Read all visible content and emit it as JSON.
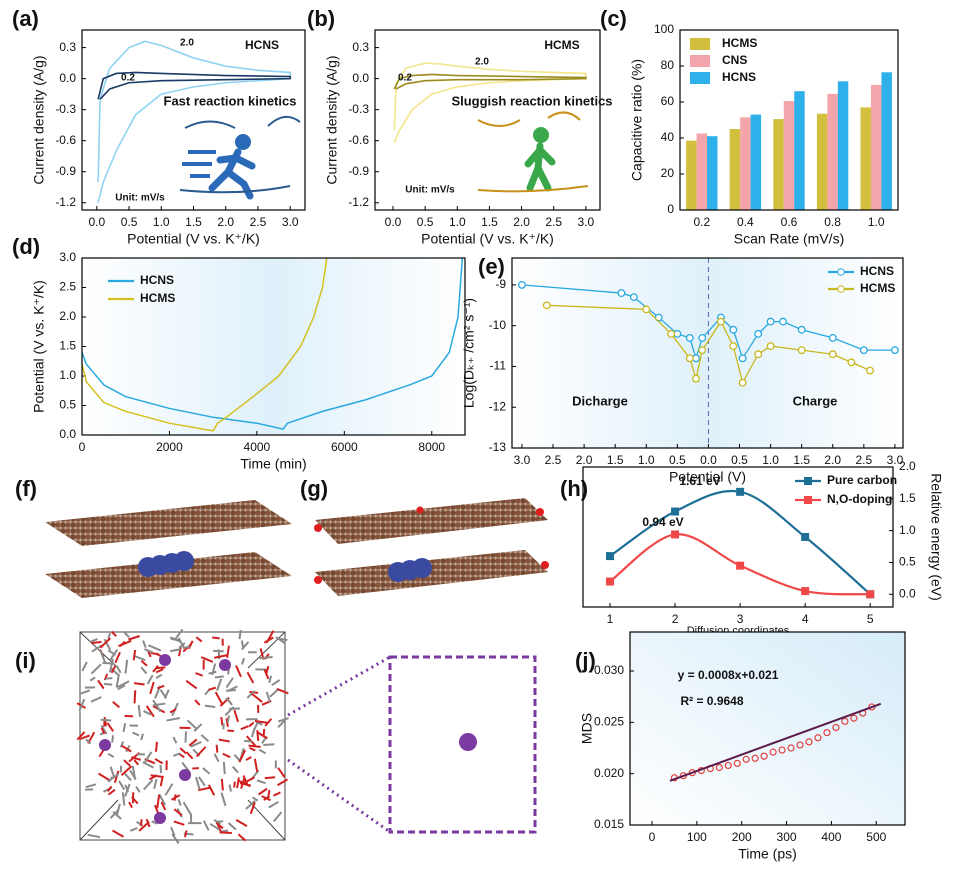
{
  "chart_data": [
    {
      "type": "line",
      "panel_label": "(a)",
      "xlabel": "Potential (V vs. K⁺/K)",
      "ylabel": "Current density (A/g)",
      "xlim": [
        -0.23,
        3.23
      ],
      "ylim": [
        -1.27,
        0.47
      ],
      "xticks": [
        {
          "value": 0,
          "label": "0.0"
        },
        0.5,
        {
          "value": 1,
          "label": "1.0"
        },
        1.5,
        {
          "value": 2,
          "label": "2.0"
        },
        2.5,
        {
          "value": 3,
          "label": "3.0"
        }
      ],
      "yticks": [
        -1.2,
        -0.9,
        -0.6,
        -0.3,
        {
          "value": 0,
          "label": "0.0"
        },
        0.3
      ],
      "annotations": [
        "HCNS",
        "Fast reaction kinetics",
        "Unit: mV/s"
      ],
      "series": [
        {
          "name": "2.0",
          "color": "#8fd3f2",
          "x": [
            0.02,
            0.05,
            0.2,
            0.5,
            0.75,
            1.0,
            1.5,
            2.0,
            2.5,
            3.0,
            3.0,
            2.5,
            2.0,
            1.5,
            1.0,
            0.6,
            0.3,
            0.1,
            0.02
          ],
          "values": [
            -1.0,
            -0.2,
            0.1,
            0.3,
            0.36,
            0.32,
            0.2,
            0.12,
            0.08,
            0.06,
            0.0,
            -0.02,
            -0.04,
            -0.08,
            -0.15,
            -0.35,
            -0.7,
            -1.0,
            -1.2
          ]
        },
        {
          "name": "0.2",
          "color": "#1b3a66",
          "x": [
            0.02,
            0.1,
            0.3,
            0.6,
            1.0,
            2.0,
            3.0,
            3.0,
            2.0,
            1.0,
            0.5,
            0.2,
            0.05
          ],
          "values": [
            -0.2,
            0.0,
            0.05,
            0.06,
            0.05,
            0.03,
            0.02,
            0.0,
            -0.01,
            -0.02,
            -0.04,
            -0.1,
            -0.2
          ]
        }
      ]
    },
    {
      "type": "line",
      "panel_label": "(b)",
      "xlabel": "Potential (V vs. K⁺/K)",
      "ylabel": "Current density (A/g)",
      "xlim": [
        -0.28,
        3.22
      ],
      "ylim": [
        -1.27,
        0.47
      ],
      "xticks": [
        {
          "value": 0,
          "label": "0.0"
        },
        0.5,
        {
          "value": 1,
          "label": "1.0"
        },
        1.5,
        {
          "value": 2,
          "label": "2.0"
        },
        2.5,
        {
          "value": 3,
          "label": "3.0"
        }
      ],
      "yticks": [
        -1.2,
        -0.9,
        -0.6,
        -0.3,
        {
          "value": 0,
          "label": "0.0"
        },
        0.3
      ],
      "annotations": [
        "HCMS",
        "Sluggish reaction kinetics",
        "Unit: mV/s"
      ],
      "series": [
        {
          "name": "2.0",
          "color": "#f2e58a",
          "x": [
            0.02,
            0.05,
            0.2,
            0.5,
            0.75,
            1.0,
            1.5,
            2.0,
            2.5,
            3.0,
            3.0,
            2.5,
            2.0,
            1.5,
            1.0,
            0.6,
            0.3,
            0.1,
            0.02
          ],
          "values": [
            -0.5,
            -0.05,
            0.1,
            0.15,
            0.14,
            0.12,
            0.09,
            0.07,
            0.06,
            0.05,
            0.0,
            -0.01,
            -0.02,
            -0.04,
            -0.08,
            -0.15,
            -0.3,
            -0.5,
            -0.62
          ]
        },
        {
          "name": "0.2",
          "color": "#9a8a20",
          "x": [
            0.02,
            0.1,
            0.3,
            0.6,
            1.0,
            2.0,
            3.0,
            3.0,
            2.0,
            1.0,
            0.5,
            0.2,
            0.05
          ],
          "values": [
            -0.1,
            0.0,
            0.03,
            0.04,
            0.03,
            0.02,
            0.01,
            0.0,
            -0.01,
            -0.01,
            -0.02,
            -0.05,
            -0.1
          ]
        }
      ]
    },
    {
      "type": "bar",
      "panel_label": "(c)",
      "xlabel": "Scan Rate (mV/s)",
      "ylabel": "Capacitive ratio (%)",
      "categories": [
        "0.2",
        "0.4",
        "0.6",
        "0.8",
        "1.0"
      ],
      "ylim": [
        0,
        100
      ],
      "yticks": [
        0,
        20,
        40,
        60,
        80,
        100
      ],
      "legend": "upper left",
      "series": [
        {
          "name": "HCMS",
          "color": "#d2bf3e",
          "values": [
            38.5,
            45,
            50.5,
            53.5,
            57
          ]
        },
        {
          "name": "CNS",
          "color": "#f4a4ab",
          "values": [
            42.5,
            51.5,
            60.5,
            64.5,
            69.5
          ]
        },
        {
          "name": "HCNS",
          "color": "#2eb0ea",
          "values": [
            41,
            53,
            66,
            71.5,
            76.5
          ]
        }
      ]
    },
    {
      "type": "line",
      "panel_label": "(d)",
      "xlabel": "Time (min)",
      "ylabel": "Potential (V vs. K⁺/K)",
      "xlim": [
        0,
        8760
      ],
      "ylim": [
        0,
        3
      ],
      "xticks": [
        0,
        2000,
        4000,
        6000,
        8000
      ],
      "yticks": [
        {
          "value": 0,
          "label": "0.0"
        },
        0.5,
        {
          "value": 1,
          "label": "1.0"
        },
        1.5,
        {
          "value": 2,
          "label": "2.0"
        },
        2.5,
        {
          "value": 3,
          "label": "3.0"
        }
      ],
      "legend": "upper left",
      "series": [
        {
          "name": "HCNS",
          "color": "#2aa8e0",
          "x": [
            0,
            100,
            500,
            1000,
            2000,
            3000,
            4000,
            4600,
            4700,
            5500,
            6500,
            7500,
            8000,
            8400,
            8600,
            8700
          ],
          "values": [
            1.4,
            1.2,
            0.85,
            0.65,
            0.45,
            0.3,
            0.2,
            0.1,
            0.2,
            0.4,
            0.6,
            0.85,
            1.0,
            1.4,
            2.0,
            3.0
          ]
        },
        {
          "name": "HCMS",
          "color": "#d4c020",
          "x": [
            0,
            100,
            500,
            1000,
            2000,
            3000,
            3100,
            3300,
            4000,
            4500,
            5000,
            5300,
            5500,
            5600
          ],
          "values": [
            1.2,
            0.9,
            0.55,
            0.4,
            0.2,
            0.07,
            0.2,
            0.3,
            0.7,
            1.0,
            1.5,
            2.0,
            2.5,
            3.0
          ]
        }
      ]
    },
    {
      "type": "line",
      "panel_label": "(e)",
      "xlabel": "Potential (V)",
      "ylabel": "Log(Dₖ₊ /cm² s⁻¹)",
      "xlim": [
        -3.16,
        3.13
      ],
      "ylim": [
        -13,
        -8.34
      ],
      "xticks": [
        {
          "value": -3,
          "label": "3.0"
        },
        {
          "value": -2.5,
          "label": "2.5"
        },
        {
          "value": -2,
          "label": "2.0"
        },
        {
          "value": -1.5,
          "label": "1.5"
        },
        {
          "value": -1,
          "label": "1.0"
        },
        {
          "value": -0.5,
          "label": "0.5"
        },
        {
          "value": 0,
          "label": "0.0"
        },
        0.5,
        {
          "value": 1,
          "label": "1.0"
        },
        1.5,
        {
          "value": 2,
          "label": "2.0"
        },
        2.5,
        {
          "value": 3,
          "label": "3.0"
        }
      ],
      "yticks": [
        -13,
        -12,
        -11,
        -10,
        -9
      ],
      "legend": "upper right",
      "annotations": [
        "Dicharge",
        "Charge"
      ],
      "series": [
        {
          "name": "HCNS",
          "color": "#2aa8e0",
          "marker": "circle",
          "x": [
            -3,
            -1.4,
            -1.2,
            -0.8,
            -0.5,
            -0.3,
            -0.2,
            -0.1,
            0.2,
            0.4,
            0.55,
            0.8,
            1.0,
            1.2,
            1.5,
            2.0,
            2.5,
            3.0
          ],
          "values": [
            -9.0,
            -9.2,
            -9.3,
            -9.8,
            -10.2,
            -10.3,
            -10.8,
            -10.3,
            -9.8,
            -10.1,
            -10.8,
            -10.2,
            -9.9,
            -9.9,
            -10.1,
            -10.3,
            -10.6,
            -10.6
          ]
        },
        {
          "name": "HCMS",
          "color": "#c8b820",
          "marker": "circle",
          "x": [
            -2.6,
            -1.0,
            -0.6,
            -0.3,
            -0.2,
            -0.1,
            0.2,
            0.4,
            0.55,
            0.8,
            1.0,
            1.5,
            2.0,
            2.3,
            2.6
          ],
          "values": [
            -9.5,
            -9.6,
            -10.2,
            -10.8,
            -11.3,
            -10.6,
            -9.9,
            -10.5,
            -11.4,
            -10.7,
            -10.5,
            -10.6,
            -10.7,
            -10.9,
            -11.1
          ]
        }
      ]
    },
    {
      "type": "image",
      "panel_label": "(f)"
    },
    {
      "type": "image",
      "panel_label": "(g)"
    },
    {
      "type": "line",
      "panel_label": "(h)",
      "xlabel": "Diffusion coordinates",
      "ylabel": "Relative energy (eV)",
      "y_axis_side": "right",
      "smooth": true,
      "xlim": [
        0.585,
        5.35
      ],
      "ylim": [
        -0.2,
        2.0
      ],
      "xticks": [
        1,
        2,
        3,
        4,
        5
      ],
      "yticks": [
        {
          "value": 0,
          "label": "0.0"
        },
        0.5,
        {
          "value": 1,
          "label": "1.0"
        },
        1.5,
        {
          "value": 2,
          "label": "2.0"
        }
      ],
      "legend": "upper right",
      "annotations": [
        "1.61 eV",
        "0.94 eV"
      ],
      "series": [
        {
          "name": "Pure carbon",
          "color": "#1e6f96",
          "marker": "square",
          "x": [
            1,
            2,
            3,
            4,
            5
          ],
          "values": [
            0.6,
            1.3,
            1.61,
            0.9,
            0
          ]
        },
        {
          "name": "N,O-doping",
          "color": "#f04848",
          "marker": "square",
          "x": [
            1,
            2,
            3,
            4,
            5
          ],
          "values": [
            0.2,
            0.94,
            0.45,
            0.05,
            0
          ]
        }
      ]
    },
    {
      "type": "image",
      "panel_label": "(i)"
    },
    {
      "type": "scatter",
      "panel_label": "(j)",
      "xlabel": "Time (ps)",
      "ylabel": "MDS",
      "xlim": [
        -49,
        564
      ],
      "ylim": [
        0.015,
        0.0338
      ],
      "xticks": [
        0,
        100,
        200,
        300,
        400,
        500
      ],
      "yticks": [
        0.015,
        {
          "value": 0.02,
          "label": "0.020"
        },
        0.025,
        {
          "value": 0.03,
          "label": "0.030"
        }
      ],
      "annotations": [
        "y = 0.0008x+0.021",
        "R² = 0.9648"
      ],
      "series": [
        {
          "color": "#e04040",
          "x": [
            50,
            70,
            90,
            110,
            130,
            150,
            170,
            190,
            210,
            230,
            250,
            270,
            290,
            310,
            330,
            350,
            370,
            390,
            410,
            430,
            450,
            470,
            490
          ],
          "values": [
            0.0196,
            0.0198,
            0.0201,
            0.0203,
            0.0205,
            0.0206,
            0.0208,
            0.021,
            0.0214,
            0.0215,
            0.0217,
            0.0221,
            0.0223,
            0.0225,
            0.0228,
            0.0231,
            0.0235,
            0.024,
            0.0245,
            0.0251,
            0.0254,
            0.0259,
            0.0265
          ]
        }
      ],
      "fit": {
        "color": "#5a1a4a",
        "x": [
          40,
          510
        ],
        "values": [
          0.0193,
          0.0268
        ]
      }
    }
  ]
}
